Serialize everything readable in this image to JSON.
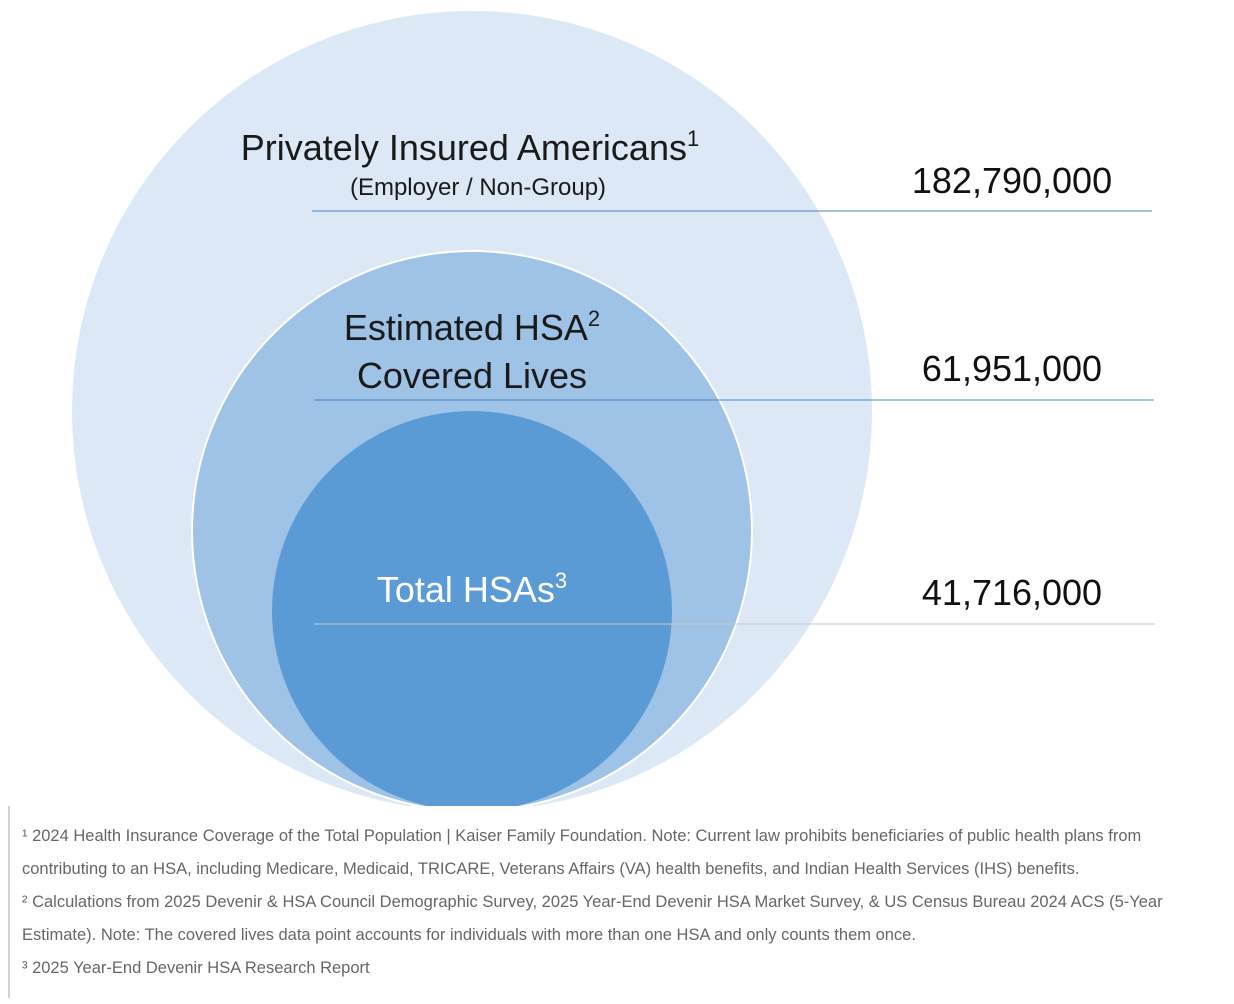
{
  "circles": {
    "outer": {
      "title": "Privately Insured Americans",
      "superscript": "1",
      "subtitle": "(Employer / Non-Group)",
      "value": "182,790,000",
      "color": "#dce8f5"
    },
    "middle": {
      "title_line1": "Estimated HSA",
      "superscript": "2",
      "title_line2": "Covered Lives",
      "value": "61,951,000",
      "color": "#9fc3e6"
    },
    "inner": {
      "title": "Total HSAs",
      "superscript": "3",
      "value": "41,716,000",
      "color": "#5b9bd5"
    }
  },
  "footnotes": [
    "¹ 2024 Health Insurance Coverage of the Total Population | Kaiser Family Foundation. Note: Current law prohibits beneficiaries of public health plans from contributing to an HSA, including Medicare, Medicaid, TRICARE, Veterans Affairs (VA) health benefits, and Indian Health Services (IHS) benefits.",
    "² Calculations from 2025 Devenir & HSA Council Demographic Survey, 2025 Year-End Devenir HSA Market Survey, & US Census Bureau 2024 ACS (5-Year Estimate). Note: The covered lives data point accounts for individuals with more than one HSA and only counts them once.",
    "³ 2025 Year-End Devenir HSA Research Report"
  ]
}
